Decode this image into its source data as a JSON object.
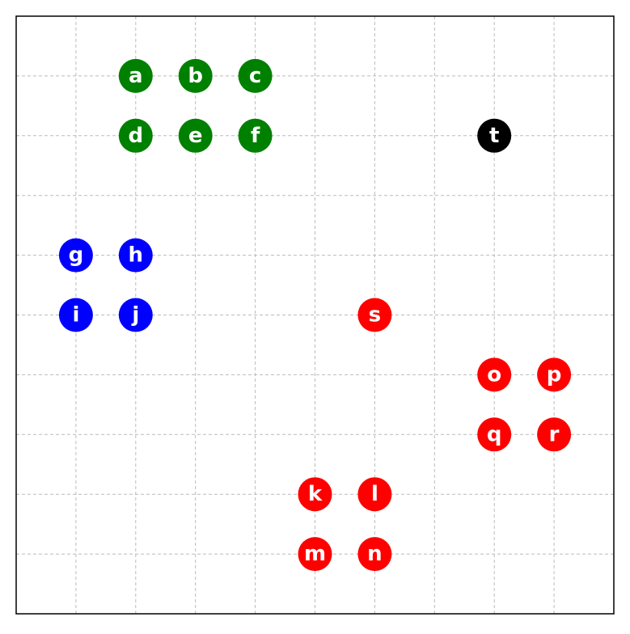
{
  "chart_data": {
    "type": "scatter",
    "title": "",
    "xlabel": "",
    "ylabel": "",
    "xlim": [
      0,
      10
    ],
    "ylim": [
      0,
      10
    ],
    "grid": true,
    "grid_step": 1,
    "axis_ticks_visible": false,
    "colors": {
      "green": "#008000",
      "blue": "#0000ff",
      "red": "#ff0000",
      "black": "#000000",
      "label": "#ffffff",
      "grid": "#bbbbbb",
      "frame": "#000000",
      "background": "#ffffff"
    },
    "points": [
      {
        "label": "a",
        "x": 2,
        "y": 9,
        "color": "green"
      },
      {
        "label": "b",
        "x": 3,
        "y": 9,
        "color": "green"
      },
      {
        "label": "c",
        "x": 4,
        "y": 9,
        "color": "green"
      },
      {
        "label": "d",
        "x": 2,
        "y": 8,
        "color": "green"
      },
      {
        "label": "e",
        "x": 3,
        "y": 8,
        "color": "green"
      },
      {
        "label": "f",
        "x": 4,
        "y": 8,
        "color": "green"
      },
      {
        "label": "g",
        "x": 1,
        "y": 6,
        "color": "blue"
      },
      {
        "label": "h",
        "x": 2,
        "y": 6,
        "color": "blue"
      },
      {
        "label": "i",
        "x": 1,
        "y": 5,
        "color": "blue"
      },
      {
        "label": "j",
        "x": 2,
        "y": 5,
        "color": "blue"
      },
      {
        "label": "k",
        "x": 5,
        "y": 2,
        "color": "red"
      },
      {
        "label": "l",
        "x": 6,
        "y": 2,
        "color": "red"
      },
      {
        "label": "m",
        "x": 5,
        "y": 1,
        "color": "red"
      },
      {
        "label": "n",
        "x": 6,
        "y": 1,
        "color": "red"
      },
      {
        "label": "o",
        "x": 8,
        "y": 4,
        "color": "red"
      },
      {
        "label": "p",
        "x": 9,
        "y": 4,
        "color": "red"
      },
      {
        "label": "q",
        "x": 8,
        "y": 3,
        "color": "red"
      },
      {
        "label": "r",
        "x": 9,
        "y": 3,
        "color": "red"
      },
      {
        "label": "s",
        "x": 6,
        "y": 5,
        "color": "red"
      },
      {
        "label": "t",
        "x": 8,
        "y": 8,
        "color": "black"
      }
    ]
  }
}
